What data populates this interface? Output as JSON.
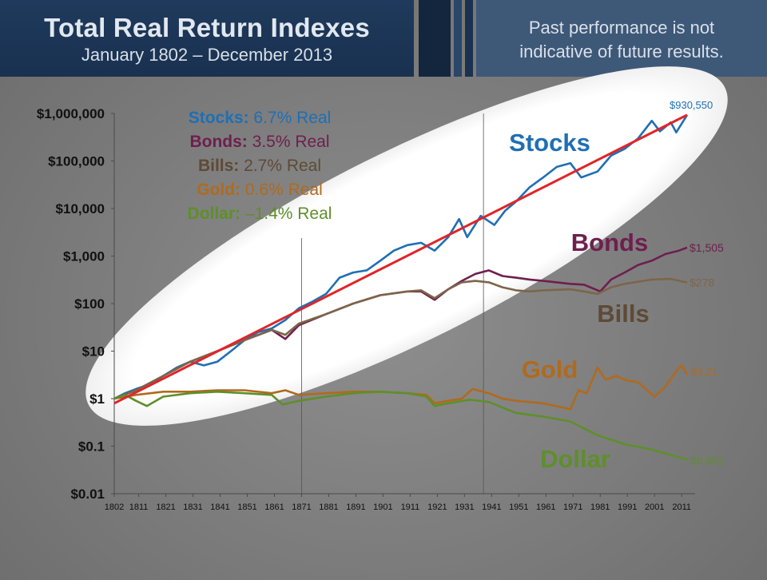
{
  "header": {
    "title": "Total Real Return Indexes",
    "subtitle": "January 1802 – December 2013",
    "disclaimer_line1": "Past performance is not",
    "disclaimer_line2": "indicative of future results."
  },
  "legend": [
    {
      "name": "Stocks:",
      "rate": "6.7% Real",
      "color": "#1f6fb4"
    },
    {
      "name": "Bonds:",
      "rate": "3.5% Real",
      "color": "#6e1f4e"
    },
    {
      "name": "Bills:",
      "rate": "2.7% Real",
      "color": "#5e4a36"
    },
    {
      "name": "Gold:",
      "rate": "0.6% Real",
      "color": "#b06a1e"
    },
    {
      "name": "Dollar:",
      "rate": "–1.4% Real",
      "color": "#5e8f2a"
    }
  ],
  "chart_data": {
    "type": "line",
    "y_scale": "log",
    "ylim": [
      0.01,
      1000000
    ],
    "xlim": [
      1802,
      2013
    ],
    "y_ticks": [
      {
        "value": 1000000,
        "label": "$1,000,000"
      },
      {
        "value": 100000,
        "label": "$100,000"
      },
      {
        "value": 10000,
        "label": "$10,000"
      },
      {
        "value": 1000,
        "label": "$1,000"
      },
      {
        "value": 100,
        "label": "$100"
      },
      {
        "value": 10,
        "label": "$10"
      },
      {
        "value": 1,
        "label": "$1"
      },
      {
        "value": 0.1,
        "label": "$0.1"
      },
      {
        "value": 0.01,
        "label": "$0.01"
      }
    ],
    "x_ticks": [
      1802,
      1811,
      1821,
      1831,
      1841,
      1851,
      1861,
      1871,
      1881,
      1891,
      1901,
      1911,
      1921,
      1931,
      1941,
      1951,
      1961,
      1971,
      1981,
      1991,
      2001,
      2011
    ],
    "vertical_lines": [
      1871,
      1938
    ],
    "series": [
      {
        "name": "Stocks",
        "color": "#1f6fb4",
        "end_label": "$930,550",
        "points": [
          [
            1802,
            1
          ],
          [
            1806,
            1.3
          ],
          [
            1810,
            1.6
          ],
          [
            1815,
            2
          ],
          [
            1820,
            3
          ],
          [
            1825,
            4.5
          ],
          [
            1830,
            6
          ],
          [
            1835,
            5
          ],
          [
            1840,
            6
          ],
          [
            1845,
            10
          ],
          [
            1850,
            17
          ],
          [
            1855,
            25
          ],
          [
            1860,
            30
          ],
          [
            1865,
            45
          ],
          [
            1870,
            80
          ],
          [
            1875,
            110
          ],
          [
            1880,
            160
          ],
          [
            1885,
            350
          ],
          [
            1890,
            450
          ],
          [
            1895,
            500
          ],
          [
            1900,
            800
          ],
          [
            1905,
            1300
          ],
          [
            1910,
            1700
          ],
          [
            1915,
            1900
          ],
          [
            1920,
            1300
          ],
          [
            1925,
            2500
          ],
          [
            1929,
            6000
          ],
          [
            1932,
            2500
          ],
          [
            1937,
            7000
          ],
          [
            1942,
            4500
          ],
          [
            1946,
            9000
          ],
          [
            1950,
            14000
          ],
          [
            1955,
            28000
          ],
          [
            1960,
            45000
          ],
          [
            1965,
            75000
          ],
          [
            1970,
            90000
          ],
          [
            1974,
            45000
          ],
          [
            1980,
            60000
          ],
          [
            1985,
            130000
          ],
          [
            1990,
            180000
          ],
          [
            1995,
            300000
          ],
          [
            2000,
            700000
          ],
          [
            2003,
            420000
          ],
          [
            2007,
            650000
          ],
          [
            2009,
            400000
          ],
          [
            2013,
            930550
          ]
        ]
      },
      {
        "name": "Bonds",
        "color": "#6e1f4e",
        "end_label": "$1,505",
        "points": [
          [
            1802,
            1
          ],
          [
            1810,
            1.5
          ],
          [
            1820,
            3
          ],
          [
            1830,
            6
          ],
          [
            1840,
            10
          ],
          [
            1850,
            17
          ],
          [
            1860,
            28
          ],
          [
            1865,
            18
          ],
          [
            1870,
            35
          ],
          [
            1880,
            60
          ],
          [
            1890,
            100
          ],
          [
            1900,
            150
          ],
          [
            1910,
            180
          ],
          [
            1915,
            180
          ],
          [
            1920,
            120
          ],
          [
            1925,
            200
          ],
          [
            1930,
            300
          ],
          [
            1935,
            420
          ],
          [
            1940,
            500
          ],
          [
            1945,
            380
          ],
          [
            1950,
            350
          ],
          [
            1955,
            320
          ],
          [
            1960,
            300
          ],
          [
            1965,
            280
          ],
          [
            1970,
            260
          ],
          [
            1975,
            250
          ],
          [
            1981,
            180
          ],
          [
            1985,
            320
          ],
          [
            1990,
            450
          ],
          [
            1995,
            650
          ],
          [
            2000,
            800
          ],
          [
            2005,
            1100
          ],
          [
            2010,
            1300
          ],
          [
            2013,
            1505
          ]
        ]
      },
      {
        "name": "Bills",
        "color": "#7d6549",
        "end_label": "$278",
        "points": [
          [
            1802,
            1
          ],
          [
            1810,
            1.5
          ],
          [
            1820,
            3
          ],
          [
            1830,
            6
          ],
          [
            1840,
            10
          ],
          [
            1850,
            17
          ],
          [
            1860,
            28
          ],
          [
            1865,
            22
          ],
          [
            1870,
            38
          ],
          [
            1880,
            60
          ],
          [
            1890,
            100
          ],
          [
            1900,
            150
          ],
          [
            1910,
            180
          ],
          [
            1915,
            190
          ],
          [
            1920,
            130
          ],
          [
            1925,
            200
          ],
          [
            1930,
            280
          ],
          [
            1935,
            300
          ],
          [
            1940,
            280
          ],
          [
            1945,
            220
          ],
          [
            1950,
            190
          ],
          [
            1955,
            180
          ],
          [
            1960,
            190
          ],
          [
            1970,
            200
          ],
          [
            1975,
            180
          ],
          [
            1980,
            160
          ],
          [
            1985,
            220
          ],
          [
            1990,
            260
          ],
          [
            2000,
            320
          ],
          [
            2007,
            330
          ],
          [
            2013,
            278
          ]
        ]
      },
      {
        "name": "Gold",
        "color": "#b06a1e",
        "end_label": "$3.21",
        "points": [
          [
            1802,
            1
          ],
          [
            1810,
            1.2
          ],
          [
            1820,
            1.4
          ],
          [
            1830,
            1.4
          ],
          [
            1840,
            1.5
          ],
          [
            1850,
            1.5
          ],
          [
            1860,
            1.3
          ],
          [
            1865,
            1.5
          ],
          [
            1870,
            1.2
          ],
          [
            1880,
            1.3
          ],
          [
            1890,
            1.4
          ],
          [
            1900,
            1.4
          ],
          [
            1910,
            1.3
          ],
          [
            1917,
            1.2
          ],
          [
            1920,
            0.8
          ],
          [
            1925,
            0.9
          ],
          [
            1930,
            1
          ],
          [
            1934,
            1.6
          ],
          [
            1940,
            1.3
          ],
          [
            1945,
            1
          ],
          [
            1950,
            0.9
          ],
          [
            1960,
            0.8
          ],
          [
            1970,
            0.6
          ],
          [
            1973,
            1.5
          ],
          [
            1976,
            1.3
          ],
          [
            1980,
            4.5
          ],
          [
            1983,
            2.5
          ],
          [
            1987,
            3
          ],
          [
            1990,
            2.5
          ],
          [
            1995,
            2.2
          ],
          [
            2001,
            1.1
          ],
          [
            2005,
            1.8
          ],
          [
            2010,
            4.5
          ],
          [
            2011,
            5
          ],
          [
            2013,
            3.21
          ]
        ]
      },
      {
        "name": "Dollar",
        "color": "#5e8f2a",
        "end_label": "$0.052",
        "points": [
          [
            1802,
            1
          ],
          [
            1806,
            1.2
          ],
          [
            1810,
            0.9
          ],
          [
            1814,
            0.7
          ],
          [
            1820,
            1.1
          ],
          [
            1830,
            1.3
          ],
          [
            1840,
            1.4
          ],
          [
            1850,
            1.3
          ],
          [
            1860,
            1.2
          ],
          [
            1864,
            0.75
          ],
          [
            1870,
            0.9
          ],
          [
            1880,
            1.1
          ],
          [
            1890,
            1.3
          ],
          [
            1900,
            1.4
          ],
          [
            1910,
            1.3
          ],
          [
            1917,
            1.1
          ],
          [
            1920,
            0.7
          ],
          [
            1925,
            0.8
          ],
          [
            1933,
            0.95
          ],
          [
            1940,
            0.85
          ],
          [
            1945,
            0.65
          ],
          [
            1950,
            0.5
          ],
          [
            1960,
            0.42
          ],
          [
            1970,
            0.33
          ],
          [
            1980,
            0.17
          ],
          [
            1990,
            0.11
          ],
          [
            2000,
            0.085
          ],
          [
            2013,
            0.052
          ]
        ]
      },
      {
        "name": "Trend",
        "color": "#e0252a",
        "points": [
          [
            1802,
            0.8
          ],
          [
            2013,
            930550
          ]
        ]
      }
    ],
    "annotations": [
      {
        "text": "Stocks",
        "color": "#1f6fb4"
      },
      {
        "text": "Bonds",
        "color": "#6e1f4e"
      },
      {
        "text": "Bills",
        "color": "#5e4a36"
      },
      {
        "text": "Gold",
        "color": "#b06a1e"
      },
      {
        "text": "Dollar",
        "color": "#5e8f2a"
      }
    ]
  }
}
